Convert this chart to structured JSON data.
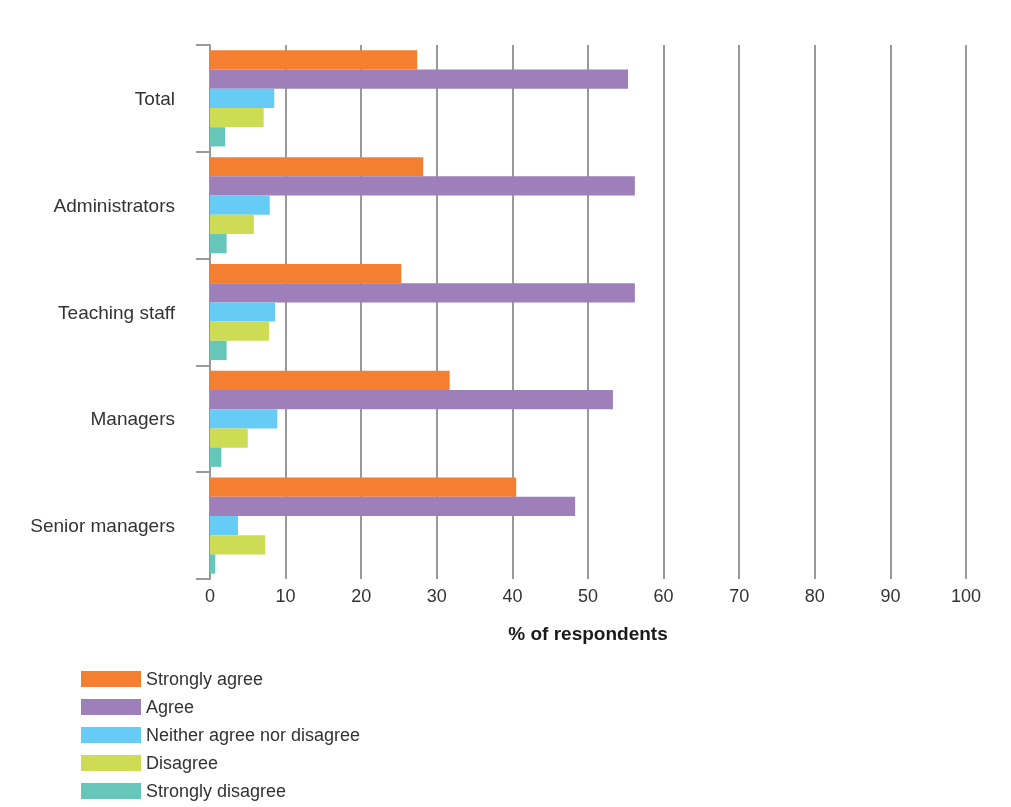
{
  "chart_data": {
    "type": "bar",
    "orientation": "horizontal",
    "xlabel": "% of respondents",
    "categories": [
      "Total",
      "Administrators",
      "Teaching staff",
      "Managers",
      "Senior managers"
    ],
    "series": [
      {
        "name": "Strongly agree",
        "color": "#f47f30",
        "values": [
          27.4,
          28.2,
          25.3,
          31.7,
          40.5
        ]
      },
      {
        "name": "Agree",
        "color": "#9e7fb9",
        "values": [
          55.3,
          56.2,
          56.2,
          53.3,
          48.3
        ]
      },
      {
        "name": "Neither agree nor disagree",
        "color": "#66ccf5",
        "values": [
          8.5,
          7.9,
          8.6,
          8.9,
          3.7
        ]
      },
      {
        "name": "Disagree",
        "color": "#cddc54",
        "values": [
          7.1,
          5.8,
          7.8,
          5.0,
          7.3
        ]
      },
      {
        "name": "Strongly disagree",
        "color": "#66c6b9",
        "values": [
          2.0,
          2.2,
          2.2,
          1.5,
          0.7
        ]
      }
    ],
    "xlim": [
      0,
      100
    ],
    "xticks": [
      0,
      10,
      20,
      30,
      40,
      50,
      60,
      70,
      80,
      90,
      100
    ],
    "grid": "x",
    "legend": "bottom left"
  }
}
